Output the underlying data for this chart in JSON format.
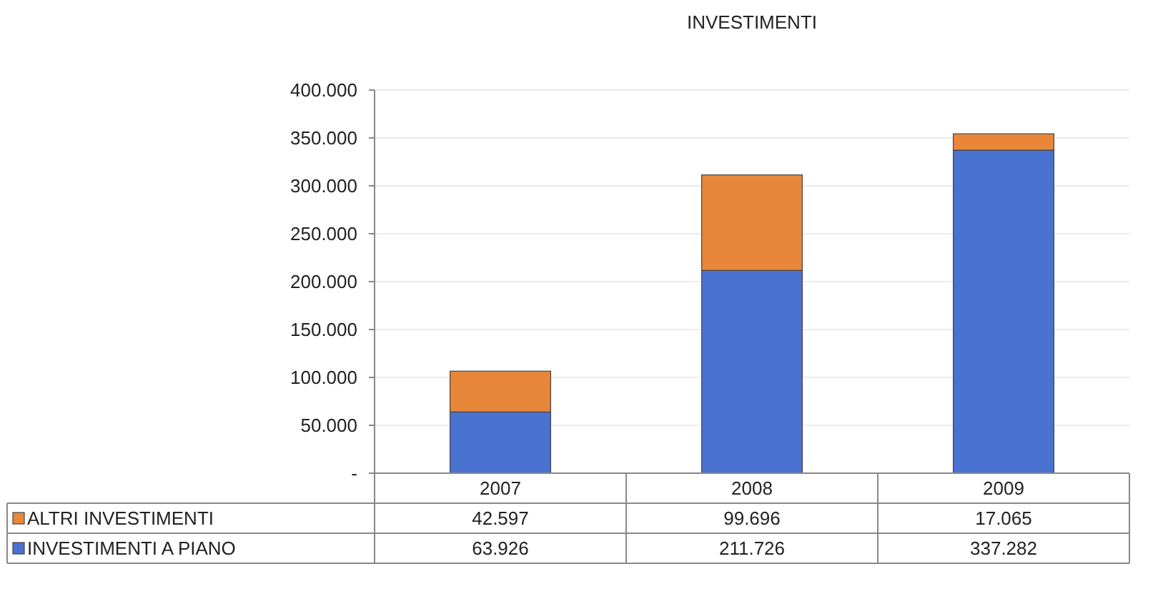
{
  "chart_data": {
    "type": "bar",
    "title": "INVESTIMENTI",
    "stacked": true,
    "categories": [
      "2007",
      "2008",
      "2009"
    ],
    "series": [
      {
        "name": "INVESTIMENTI A PIANO",
        "color": "#4a72d0",
        "values": [
          63926,
          211726,
          337282
        ],
        "value_labels": [
          "63.926",
          "211.726",
          "337.282"
        ]
      },
      {
        "name": "ALTRI INVESTIMENTI",
        "color": "#e8873a",
        "values": [
          42597,
          99696,
          17065
        ],
        "value_labels": [
          "42.597",
          "99.696",
          "17.065"
        ]
      }
    ],
    "ylim": [
      0,
      400000
    ],
    "yticks": [
      {
        "value": 0,
        "label": "-"
      },
      {
        "value": 50000,
        "label": "50.000"
      },
      {
        "value": 100000,
        "label": "100.000"
      },
      {
        "value": 150000,
        "label": "150.000"
      },
      {
        "value": 200000,
        "label": "200.000"
      },
      {
        "value": 250000,
        "label": "250.000"
      },
      {
        "value": 300000,
        "label": "300.000"
      },
      {
        "value": 350000,
        "label": "350.000"
      },
      {
        "value": 400000,
        "label": "400.000"
      }
    ],
    "grid": true,
    "legend": "bottom"
  }
}
